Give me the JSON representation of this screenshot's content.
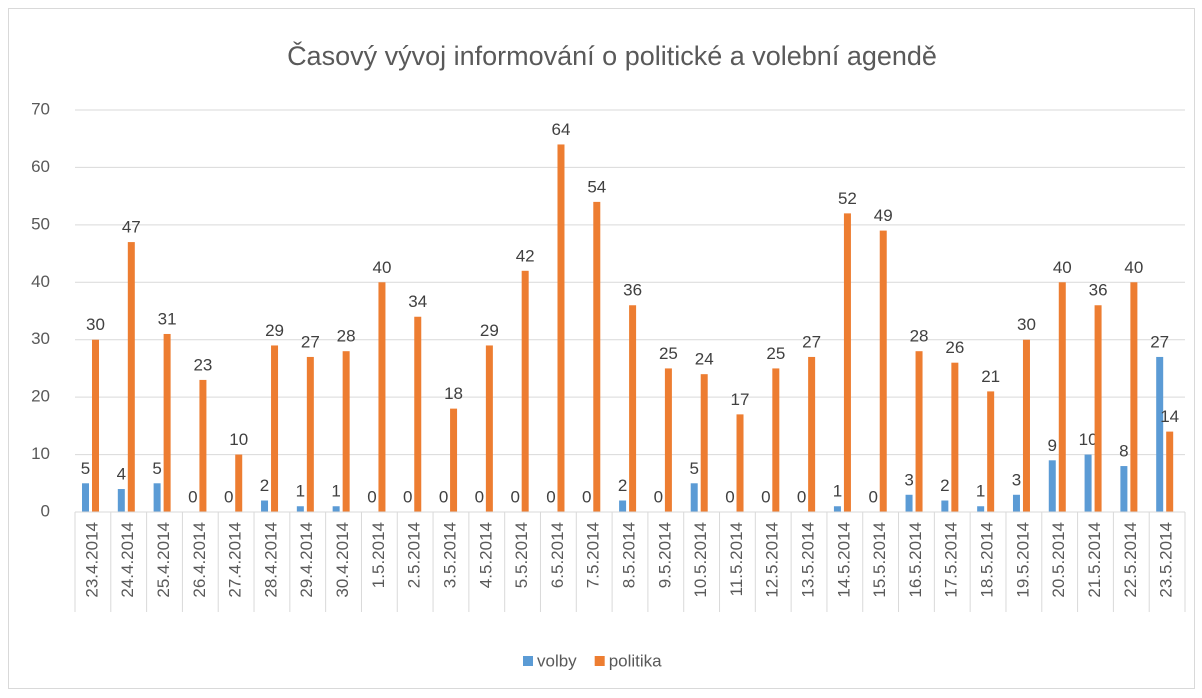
{
  "chart_data": {
    "type": "bar",
    "title": "Časový vývoj informování o politické a volební agendě",
    "categories": [
      "23.4.2014",
      "24.4.2014",
      "25.4.2014",
      "26.4.2014",
      "27.4.2014",
      "28.4.2014",
      "29.4.2014",
      "30.4.2014",
      "1.5.2014",
      "2.5.2014",
      "3.5.2014",
      "4.5.2014",
      "5.5.2014",
      "6.5.2014",
      "7.5.2014",
      "8.5.2014",
      "9.5.2014",
      "10.5.2014",
      "11.5.2014",
      "12.5.2014",
      "13.5.2014",
      "14.5.2014",
      "15.5.2014",
      "16.5.2014",
      "17.5.2014",
      "18.5.2014",
      "19.5.2014",
      "20.5.2014",
      "21.5.2014",
      "22.5.2014",
      "23.5.2014"
    ],
    "series": [
      {
        "name": "volby",
        "color": "#5b9bd5",
        "values": [
          5,
          4,
          5,
          0,
          0,
          2,
          1,
          1,
          0,
          0,
          0,
          0,
          0,
          0,
          0,
          2,
          0,
          5,
          0,
          0,
          0,
          1,
          0,
          3,
          2,
          1,
          3,
          9,
          10,
          8,
          27
        ]
      },
      {
        "name": "politika",
        "color": "#ed7d31",
        "values": [
          30,
          47,
          31,
          23,
          10,
          29,
          27,
          28,
          40,
          34,
          18,
          29,
          42,
          64,
          54,
          36,
          25,
          24,
          17,
          25,
          27,
          52,
          49,
          28,
          26,
          21,
          30,
          40,
          36,
          40,
          14
        ]
      }
    ],
    "ylim": [
      0,
      70
    ],
    "yticks": [
      0,
      10,
      20,
      30,
      40,
      50,
      60,
      70
    ],
    "grid": true,
    "legend": "bottom"
  }
}
